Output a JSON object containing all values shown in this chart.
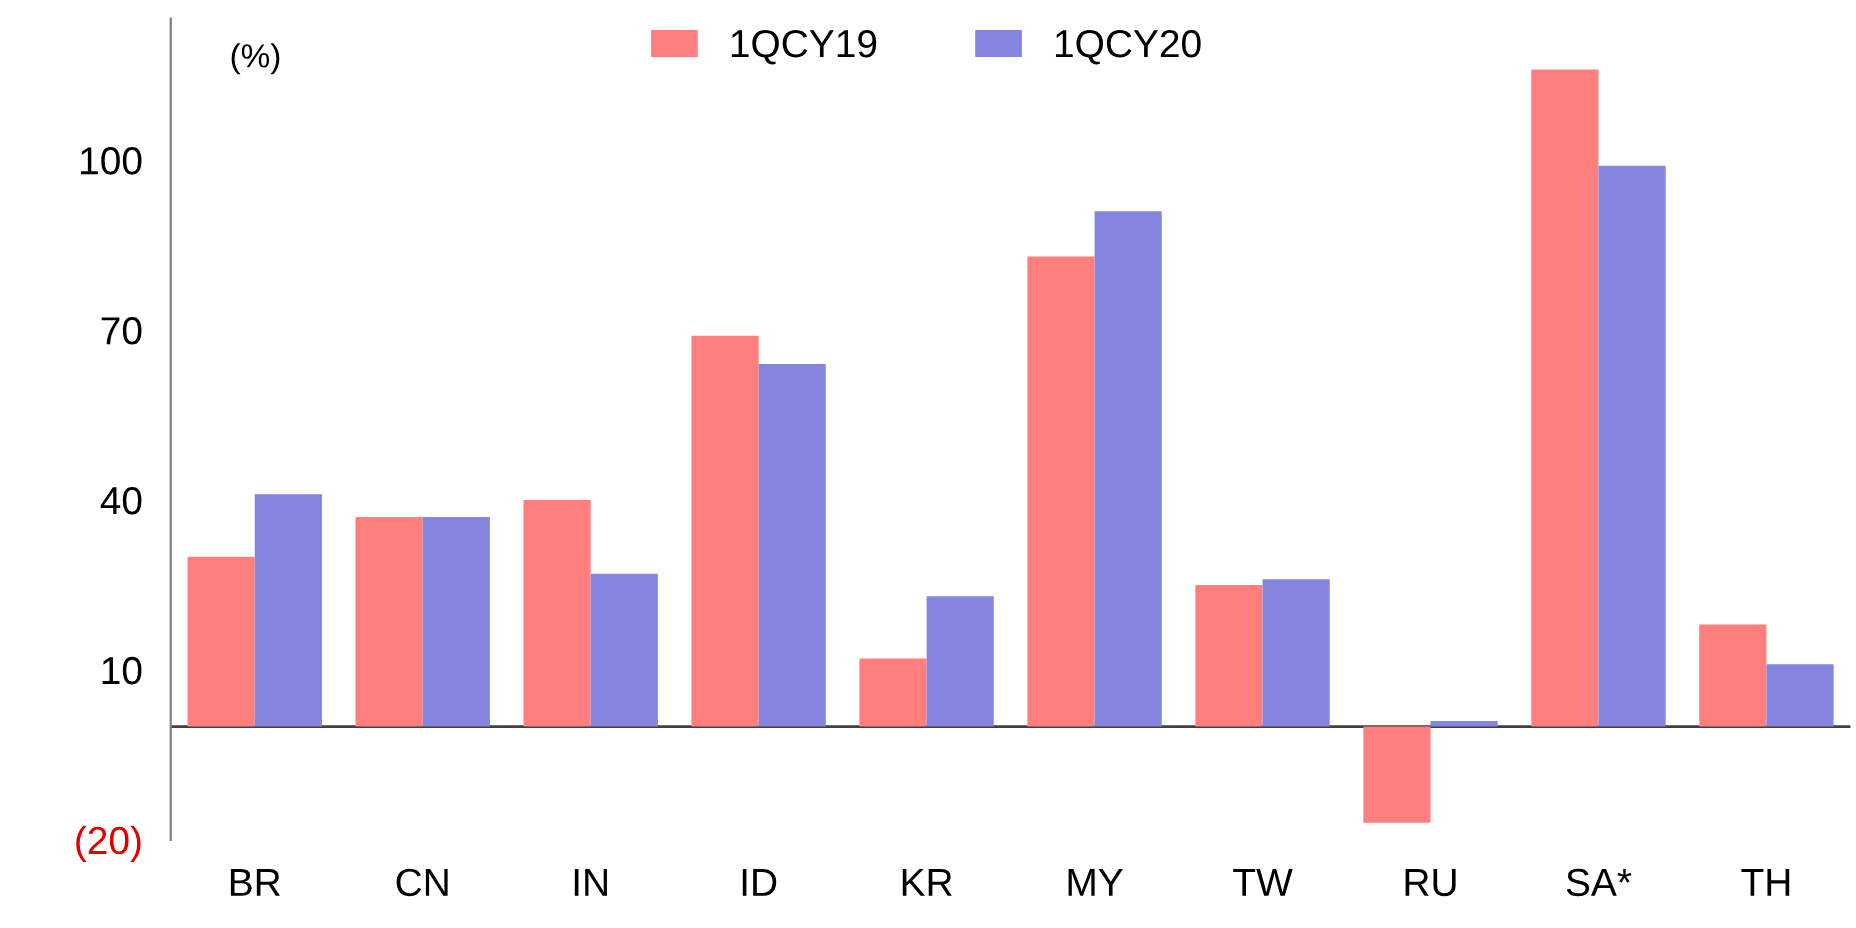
{
  "chart_data": {
    "type": "bar",
    "ylabel": "(%)",
    "categories": [
      "BR",
      "CN",
      "IN",
      "ID",
      "KR",
      "MY",
      "TW",
      "RU",
      "SA*",
      "TH"
    ],
    "series": [
      {
        "name": "1QCY19",
        "color": "#ff7f7f",
        "values": [
          30,
          37,
          40,
          69,
          12,
          83,
          25,
          -17,
          116,
          18
        ]
      },
      {
        "name": "1QCY20",
        "color": "#8585e0",
        "values": [
          41,
          37,
          27,
          64,
          23,
          91,
          26,
          1,
          99,
          11
        ]
      }
    ],
    "ylim": [
      -20,
      125
    ],
    "yticks": [
      {
        "value": -20,
        "label": "(20)"
      },
      10,
      40,
      70,
      100
    ],
    "ref_lines": [
      {
        "axis": "y",
        "value": 0,
        "color": "#404040"
      }
    ],
    "grid": false,
    "legend": "top"
  }
}
